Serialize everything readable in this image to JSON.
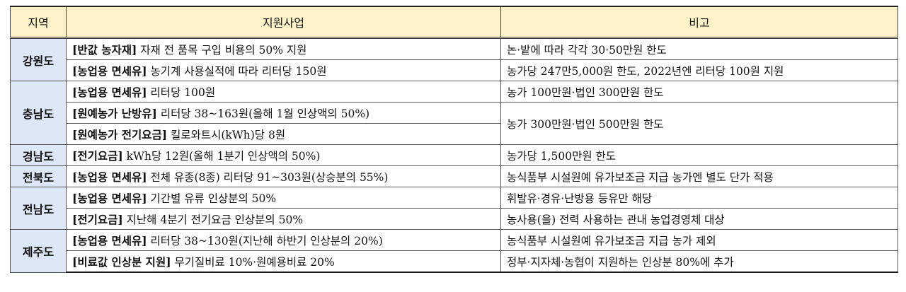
{
  "header": {
    "region": "지역",
    "program": "지원사업",
    "note": "비고"
  },
  "regions": {
    "gangwon": "강원도",
    "chungnam": "충남도",
    "gyeongnam": "경남도",
    "jeonbuk": "전북도",
    "jeonnam": "전남도",
    "jeju": "제주도"
  },
  "rows": [
    {
      "tag": "[반값 농자재]",
      "program": " 자재 전 품목 구입 비용의 50% 지원",
      "note": "논·밭에 따라 각각 30·50만원 한도"
    },
    {
      "tag": "[농업용 면세유]",
      "program": " 농기계 사용실적에 따라 리터당 150원",
      "note": "농가당 247만5,000원 한도, 2022년엔 리터당 100원 지원"
    },
    {
      "tag": "[농업용 면세유]",
      "program": " 리터당 100원",
      "note": "농가 100만원·법인 300만원 한도"
    },
    {
      "tag": "[원예농가 난방유]",
      "program": " 리터당 38~163원(올해 1월 인상액의 50%)",
      "note": "농가 300만원·법인 500만원 한도"
    },
    {
      "tag": "[원예농가 전기요금]",
      "program": " 킬로와트시(kWh)당 8원",
      "note": ""
    },
    {
      "tag": "[전기요금]",
      "program": " kWh당 12원(올해 1분기 인상액의 50%)",
      "note": "농가당 1,500만원 한도"
    },
    {
      "tag": "[농업용 면세유]",
      "program": " 전체 유종(8종) 리터당 91~303원(상승분의 55%)",
      "note": "농식품부 시설원예 유가보조금 지급 농가엔 별도 단가 적용"
    },
    {
      "tag": "[농업용 면세유]",
      "program": " 기간별 유류 인상분의 50%",
      "note": "휘발유·경유·난방용 등유만 해당"
    },
    {
      "tag": "[전기요금]",
      "program": " 지난해 4분기 전기요금 인상분의 50%",
      "note": "농사용(을) 전력 사용하는 관내 농업경영체 대상"
    },
    {
      "tag": "[농업용 면세유]",
      "program": " 리터당 38~130원(지난해 하반기 인상분의 20%)",
      "note": "농식품부 시설원예 유가보조금 지급 농가 제외"
    },
    {
      "tag": "[비료값 인상분 지원]",
      "program": " 무기질비료 10%·원예용비료 20%",
      "note": "정부·지자체·농협이 지원하는 인상분 80%에 추가"
    }
  ]
}
